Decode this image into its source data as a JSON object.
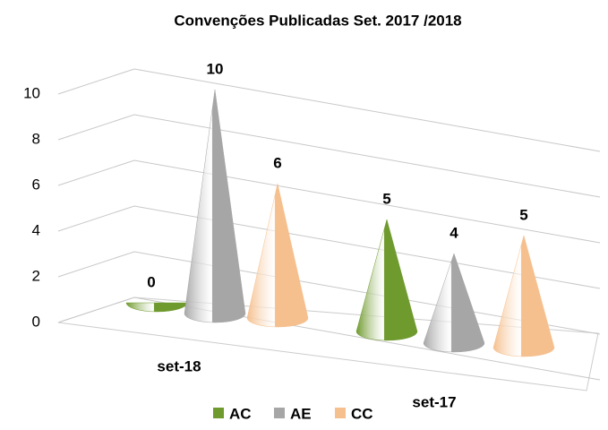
{
  "chart_data": {
    "type": "cone3d",
    "title": "Convenções Publicadas Set. 2017 /2018",
    "categories": [
      "set-18",
      "set-17"
    ],
    "series": [
      {
        "name": "AC",
        "color": "#6f9a2e",
        "values": [
          0,
          5
        ]
      },
      {
        "name": "AE",
        "color": "#a6a6a6",
        "values": [
          10,
          4
        ]
      },
      {
        "name": "CC",
        "color": "#f5c08e",
        "values": [
          6,
          5
        ]
      }
    ],
    "ylim": [
      0,
      10
    ],
    "yticks": [
      0,
      2,
      4,
      6,
      8,
      10
    ],
    "grid": true
  }
}
